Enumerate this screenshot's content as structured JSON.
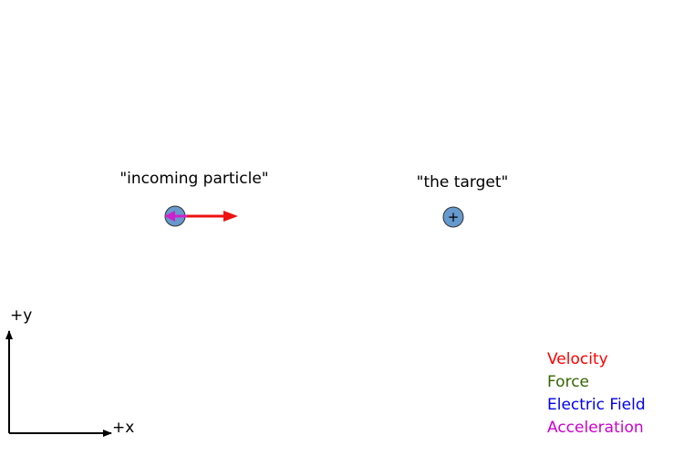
{
  "labels": {
    "incoming": "\"incoming particle\"",
    "target": "\"the target\""
  },
  "particles": {
    "incoming_charge": "-",
    "target_charge": "+"
  },
  "axes": {
    "x_label": "+x",
    "y_label": "+y"
  },
  "legend": [
    {
      "label": "Velocity",
      "color": "#ff0000"
    },
    {
      "label": "Force",
      "color": "#336600"
    },
    {
      "label": "Electric Field",
      "color": "#0000ee"
    },
    {
      "label": "Acceleration",
      "color": "#cc00cc"
    }
  ],
  "colors": {
    "particle_fill": "#6699cc",
    "velocity": "#ee1111",
    "acceleration": "#cc22cc"
  }
}
